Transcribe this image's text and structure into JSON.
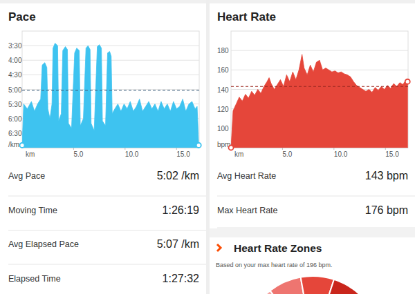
{
  "chart_data": [
    {
      "type": "area",
      "title": "Pace",
      "x_label": "km",
      "y_label": "/km",
      "x": [
        0,
        0.15,
        0.5,
        0.9,
        1.2,
        1.5,
        1.8,
        1.95,
        2.2,
        2.4,
        2.5,
        2.7,
        2.9,
        3.0,
        3.2,
        3.45,
        3.55,
        3.8,
        3.95,
        4.2,
        4.4,
        4.5,
        4.8,
        5.1,
        5.3,
        5.55,
        5.65,
        5.95,
        6.2,
        6.4,
        6.6,
        6.7,
        7.0,
        7.3,
        7.5,
        7.7,
        7.8,
        8.1,
        8.3,
        8.5,
        8.65,
        8.75,
        9.0,
        9.3,
        9.6,
        9.9,
        10.2,
        10.5,
        10.8,
        11.1,
        11.4,
        11.7,
        12.0,
        12.3,
        12.6,
        12.9,
        13.2,
        13.5,
        13.8,
        14.1,
        14.4,
        14.7,
        15.0,
        15.3,
        15.6,
        15.9,
        16.2,
        16.5,
        16.8,
        17.0,
        17.15
      ],
      "series": [
        {
          "name": "Pace",
          "color": "#3ec3f0",
          "values": [
            415,
            330,
            340,
            325,
            345,
            330,
            320,
            250,
            245,
            255,
            340,
            360,
            330,
            215,
            205,
            210,
            365,
            350,
            220,
            212,
            218,
            370,
            380,
            225,
            215,
            220,
            375,
            360,
            215,
            210,
            218,
            370,
            385,
            212,
            208,
            215,
            365,
            375,
            225,
            222,
            232,
            350,
            340,
            330,
            345,
            330,
            340,
            325,
            345,
            335,
            320,
            345,
            335,
            325,
            340,
            330,
            345,
            325,
            340,
            330,
            345,
            325,
            340,
            335,
            320,
            345,
            330,
            325,
            340,
            335,
            415
          ]
        }
      ],
      "xlim": [
        0,
        17.2
      ],
      "xticks": [
        {
          "value": 5,
          "label": "5.0"
        },
        {
          "value": 10,
          "label": "10.0"
        },
        {
          "value": 15,
          "label": "15.0"
        }
      ],
      "ylim": [
        420,
        180
      ],
      "yticks": [
        {
          "value": 210,
          "label": "3:30"
        },
        {
          "value": 240,
          "label": "4:00"
        },
        {
          "value": 270,
          "label": "4:30"
        },
        {
          "value": 300,
          "label": "5:00"
        },
        {
          "value": 330,
          "label": "5:30"
        },
        {
          "value": 360,
          "label": "6:00"
        },
        {
          "value": 390,
          "label": "6:30"
        }
      ],
      "reference_line": 302,
      "grid": true,
      "marker": "ends"
    },
    {
      "type": "area",
      "title": "Heart Rate",
      "x_label": "km",
      "y_label": "bpm",
      "x": [
        0,
        0.2,
        0.5,
        0.8,
        1.1,
        1.4,
        1.7,
        2.0,
        2.3,
        2.6,
        2.9,
        3.2,
        3.5,
        3.7,
        3.9,
        4.2,
        4.5,
        4.8,
        5.1,
        5.4,
        5.7,
        6.0,
        6.3,
        6.6,
        6.9,
        7.1,
        7.4,
        7.7,
        8.0,
        8.3,
        8.6,
        8.9,
        9.2,
        9.5,
        9.8,
        10.1,
        10.4,
        10.7,
        11.0,
        11.3,
        11.6,
        11.9,
        12.2,
        12.5,
        12.8,
        13.1,
        13.4,
        13.7,
        14.0,
        14.3,
        14.6,
        14.9,
        15.2,
        15.5,
        15.8,
        16.1,
        16.4,
        16.7,
        17.0,
        17.15
      ],
      "series": [
        {
          "name": "Heart Rate",
          "color": "#e5463a",
          "values": [
            80,
            118,
            125,
            132,
            128,
            135,
            131,
            138,
            134,
            140,
            136,
            143,
            148,
            152,
            146,
            140,
            145,
            150,
            143,
            155,
            148,
            158,
            150,
            160,
            176,
            162,
            155,
            165,
            158,
            168,
            170,
            160,
            162,
            160,
            158,
            159,
            157,
            158,
            156,
            155,
            153,
            148,
            144,
            142,
            140,
            138,
            140,
            137,
            142,
            139,
            143,
            140,
            144,
            141,
            146,
            143,
            147,
            145,
            150,
            148
          ]
        }
      ],
      "xlim": [
        0,
        17.2
      ],
      "xticks": [
        {
          "value": 5,
          "label": "5.0"
        },
        {
          "value": 10,
          "label": "10.0"
        },
        {
          "value": 15,
          "label": "15.0"
        }
      ],
      "ylim": [
        80,
        200
      ],
      "yticks": [
        100,
        120,
        140,
        160,
        180
      ],
      "reference_line": 143,
      "grid": true,
      "marker": "ends"
    }
  ],
  "pace_stats": [
    {
      "label": "Avg Pace",
      "value": "5:02 /km"
    },
    {
      "label": "Moving Time",
      "value": "1:26:19"
    },
    {
      "label": "Avg Elapsed Pace",
      "value": "5:07 /km"
    },
    {
      "label": "Elapsed Time",
      "value": "1:27:32"
    }
  ],
  "heart_rate_stats": [
    {
      "label": "Avg Heart Rate",
      "value": "143 bpm"
    },
    {
      "label": "Max Heart Rate",
      "value": "176 bpm"
    }
  ],
  "zones": {
    "title": "Heart Rate Zones",
    "subtitle": "Based on your max heart rate of 196 bpm."
  }
}
